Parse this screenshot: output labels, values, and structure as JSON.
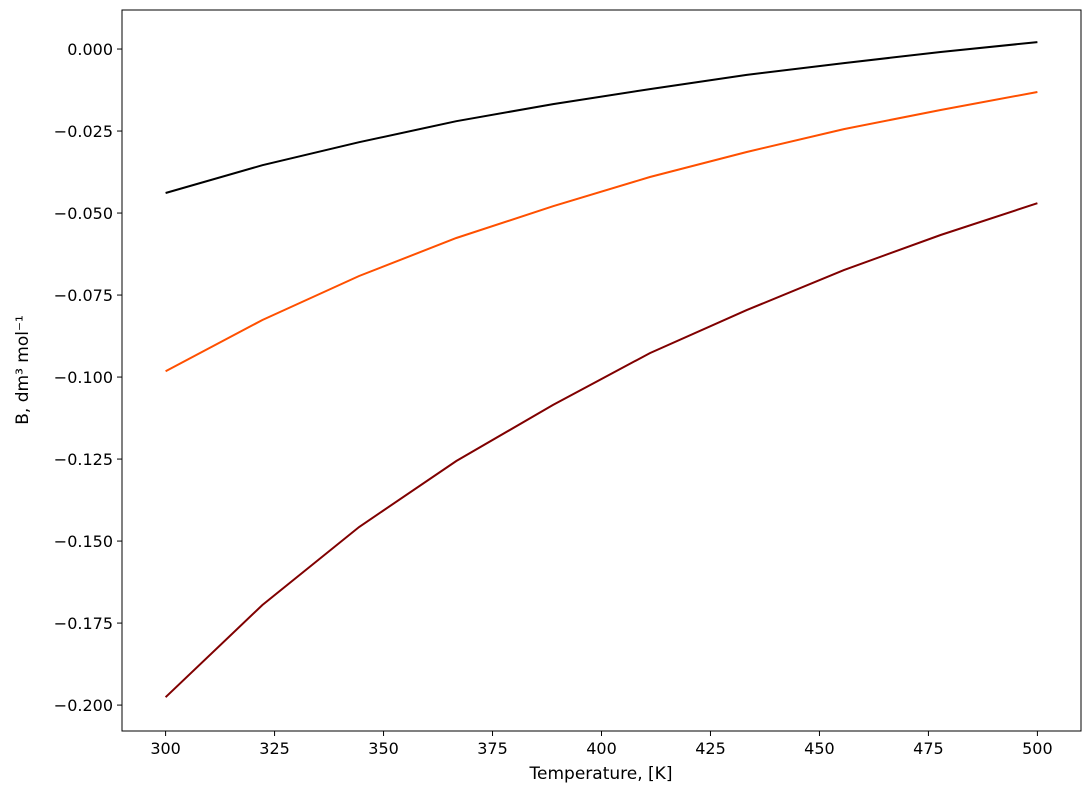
{
  "chart_data": {
    "type": "line",
    "title": "",
    "xlabel": "Temperature, [K]",
    "ylabel": "B, dm³ mol⁻¹",
    "xlim": [
      290,
      510
    ],
    "ylim": [
      -0.2079,
      0.0119
    ],
    "grid": false,
    "xticks": [
      300,
      325,
      350,
      375,
      400,
      425,
      450,
      475,
      500
    ],
    "xtick_labels": [
      "300",
      "325",
      "350",
      "375",
      "400",
      "425",
      "450",
      "475",
      "500"
    ],
    "yticks": [
      0.0,
      -0.025,
      -0.05,
      -0.075,
      -0.1,
      -0.125,
      -0.15,
      -0.175,
      -0.2
    ],
    "ytick_labels": [
      "0.000",
      "−0.025",
      "−0.050",
      "−0.075",
      "−0.100",
      "−0.125",
      "−0.150",
      "−0.175",
      "−0.200"
    ],
    "x": [
      300,
      322.2,
      344.4,
      366.7,
      388.9,
      411.1,
      433.3,
      455.6,
      477.8,
      500
    ],
    "series": [
      {
        "color": "#000000",
        "values": [
          -0.0439,
          -0.0354,
          -0.0284,
          -0.022,
          -0.0168,
          -0.0122,
          -0.0079,
          -0.0043,
          -0.0009,
          0.0021
        ]
      },
      {
        "color": "#ff5000",
        "values": [
          -0.0982,
          -0.0826,
          -0.0692,
          -0.0576,
          -0.0479,
          -0.039,
          -0.0314,
          -0.0244,
          -0.0186,
          -0.0131
        ]
      },
      {
        "color": "#800000",
        "values": [
          -0.1976,
          -0.1695,
          -0.1457,
          -0.1256,
          -0.1085,
          -0.0927,
          -0.0796,
          -0.0674,
          -0.0567,
          -0.047
        ]
      }
    ]
  }
}
